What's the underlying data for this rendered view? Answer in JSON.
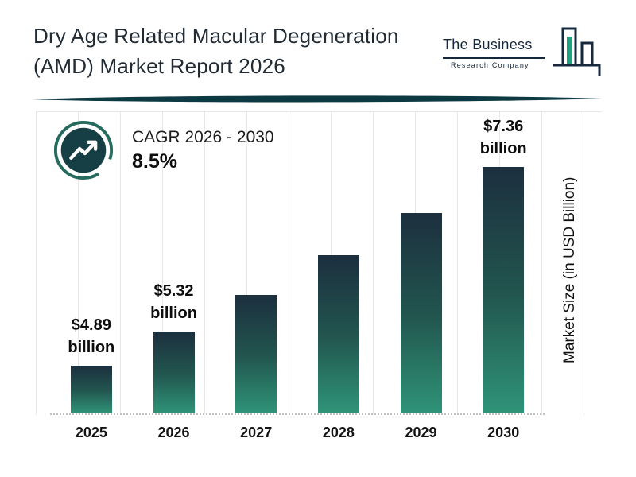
{
  "header": {
    "title_line1": "Dry Age Related Macular Degeneration",
    "title_line2": "(AMD) Market Report 2026",
    "logo": {
      "name_line": "The Business",
      "sub_line": "Research Company"
    }
  },
  "cagr": {
    "label": "CAGR 2026 - 2030",
    "value": "8.5%"
  },
  "chart_data": {
    "type": "bar",
    "title": "Dry Age Related Macular Degeneration (AMD) Market Report 2026",
    "categories": [
      "2025",
      "2026",
      "2027",
      "2028",
      "2029",
      "2030"
    ],
    "values": [
      4.89,
      5.32,
      5.77,
      6.26,
      6.79,
      7.36
    ],
    "value_labels": {
      "2025": [
        "$4.89",
        "billion"
      ],
      "2026": [
        "$5.32",
        "billion"
      ],
      "2030": [
        "$7.36",
        "billion"
      ]
    },
    "xlabel": "",
    "ylabel": "Market Size (in USD Billion)",
    "ylim": [
      4.3,
      7.36
    ],
    "grid": "vertical",
    "legend": "none",
    "bar_gradient": [
      "#1c2f3e",
      "#22564f",
      "#2f9478"
    ]
  },
  "colors": {
    "divider_teal": "#0d3a42",
    "ring_teal": "#256b5e",
    "badge_fill": "#163e45",
    "navy": "#16283c",
    "logo_teal": "#25a07c"
  }
}
